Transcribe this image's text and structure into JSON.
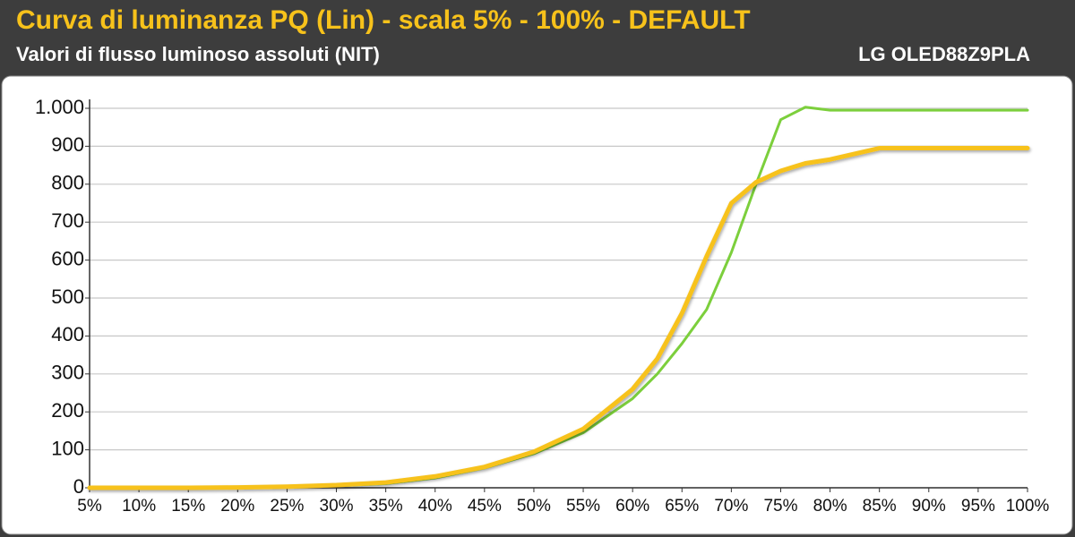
{
  "chart_data": {
    "type": "line",
    "title": "Curva di luminanza PQ (Lin) - scala 5% - 100% - DEFAULT",
    "subtitle": "Valori di flusso luminoso assoluti (NIT)",
    "annotation": "LG OLED88Z9PLA",
    "x": [
      5,
      10,
      15,
      20,
      25,
      30,
      35,
      40,
      45,
      50,
      55,
      60,
      62.5,
      65,
      67.5,
      70,
      72.5,
      75,
      77.5,
      80,
      85,
      90,
      95,
      100
    ],
    "series": [
      {
        "color": "#7ccf3c",
        "values": [
          0,
          0,
          0,
          1,
          2,
          5,
          11,
          26,
          52,
          90,
          145,
          235,
          300,
          380,
          470,
          620,
          800,
          970,
          1003,
          995,
          995,
          995,
          995,
          995
        ]
      },
      {
        "color": "#f7c21b",
        "values": [
          0,
          0,
          0,
          1,
          3,
          7,
          14,
          30,
          55,
          95,
          155,
          260,
          340,
          460,
          610,
          750,
          805,
          835,
          855,
          865,
          895,
          895,
          895,
          895
        ]
      }
    ],
    "xlim": [
      5,
      100
    ],
    "xticks": [
      {
        "value": 5,
        "label": "5%"
      },
      {
        "value": 10,
        "label": "10%"
      },
      {
        "value": 15,
        "label": "15%"
      },
      {
        "value": 20,
        "label": "20%"
      },
      {
        "value": 25,
        "label": "25%"
      },
      {
        "value": 30,
        "label": "30%"
      },
      {
        "value": 35,
        "label": "35%"
      },
      {
        "value": 40,
        "label": "40%"
      },
      {
        "value": 45,
        "label": "45%"
      },
      {
        "value": 50,
        "label": "50%"
      },
      {
        "value": 55,
        "label": "55%"
      },
      {
        "value": 60,
        "label": "60%"
      },
      {
        "value": 65,
        "label": "65%"
      },
      {
        "value": 70,
        "label": "70%"
      },
      {
        "value": 75,
        "label": "75%"
      },
      {
        "value": 80,
        "label": "80%"
      },
      {
        "value": 85,
        "label": "85%"
      },
      {
        "value": 90,
        "label": "90%"
      },
      {
        "value": 95,
        "label": "95%"
      },
      {
        "value": 100,
        "label": "100%"
      }
    ],
    "ylim": [
      0,
      1000
    ],
    "yticks": [
      0,
      100,
      200,
      300,
      400,
      500,
      600,
      700,
      800,
      900,
      {
        "value": 1000,
        "label": "1.000"
      }
    ],
    "grid": true
  }
}
